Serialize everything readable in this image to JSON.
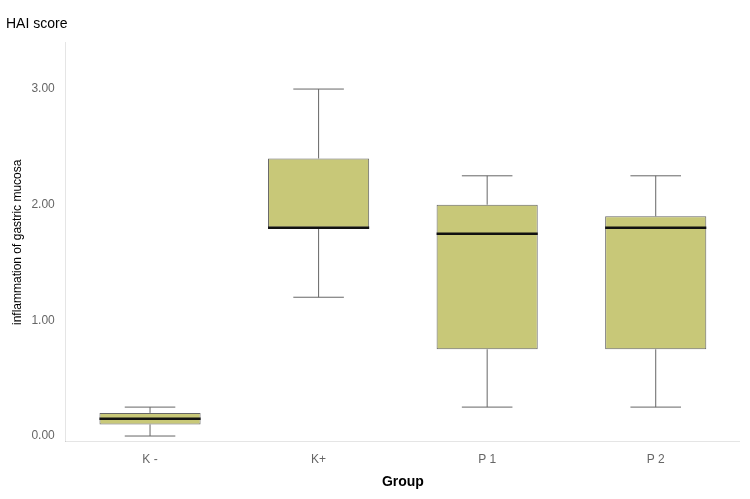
{
  "chart_data": {
    "type": "box",
    "title": "HAI score",
    "x_label": "Group",
    "y_label": "inflammation of gastric mucosa",
    "categories": [
      "K -",
      "K+",
      "P 1",
      "P 2"
    ],
    "boxes": [
      {
        "whislo": 0.0,
        "q1": 0.1,
        "med": 0.15,
        "q3": 0.2,
        "whishi": 0.25
      },
      {
        "whislo": 1.2,
        "q1": 1.8,
        "med": 1.8,
        "q3": 2.4,
        "whishi": 3.0
      },
      {
        "whislo": 0.25,
        "q1": 0.75,
        "med": 1.75,
        "q3": 2.0,
        "whishi": 2.25
      },
      {
        "whislo": 0.25,
        "q1": 0.75,
        "med": 1.8,
        "q3": 1.9,
        "whishi": 2.25
      }
    ],
    "color": "#c8c878",
    "ylim": [
      -0.05,
      3.4
    ],
    "yticks": [
      {
        "value": 0.0,
        "label": "0.00"
      },
      {
        "value": 1.0,
        "label": "1.00"
      },
      {
        "value": 2.0,
        "label": "2.00"
      },
      {
        "value": 3.0,
        "label": "3.00"
      }
    ],
    "grid": false,
    "legend": false
  }
}
